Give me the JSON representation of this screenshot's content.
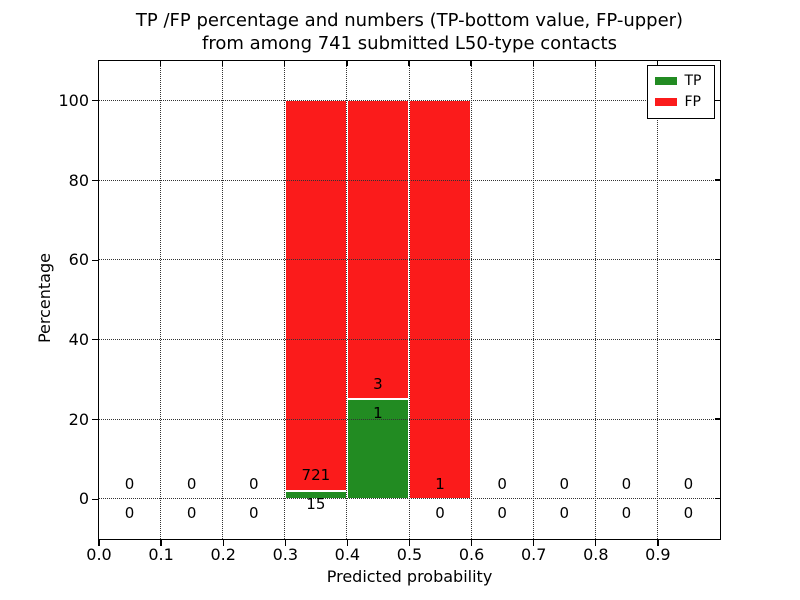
{
  "chart_data": {
    "type": "bar",
    "stacked": true,
    "title_line1": "TP /FP percentage and numbers (TP-bottom value, FP-upper)",
    "title_line2": "from among 741 submitted L50-type contacts",
    "xlabel": "Predicted probability",
    "ylabel": "Percentage",
    "total_submitted_contacts": 741,
    "xlim": [
      0.0,
      1.0
    ],
    "ylim": [
      -10,
      110
    ],
    "grid": "dotted",
    "xtick_values": [
      0.0,
      0.1,
      0.2,
      0.3,
      0.4,
      0.5,
      0.6,
      0.7,
      0.8,
      0.9
    ],
    "xtick_labels": [
      "0.0",
      "0.1",
      "0.2",
      "0.3",
      "0.4",
      "0.5",
      "0.6",
      "0.7",
      "0.8",
      "0.9"
    ],
    "ytick_values": [
      0,
      20,
      40,
      60,
      80,
      100
    ],
    "ytick_labels": [
      "0",
      "20",
      "40",
      "60",
      "80",
      "100"
    ],
    "colors": {
      "tp": "#228b22",
      "fp": "#fb1b1b",
      "bar_edge": "#ffffff",
      "grid": "#333333"
    },
    "legend_position": "upper-right",
    "legend": [
      {
        "label": "TP",
        "color": "#228b22"
      },
      {
        "label": "FP",
        "color": "#fb1b1b"
      }
    ],
    "bins": [
      {
        "range": [
          0.0,
          0.1
        ],
        "tp": 0,
        "fp": 0
      },
      {
        "range": [
          0.1,
          0.2
        ],
        "tp": 0,
        "fp": 0
      },
      {
        "range": [
          0.2,
          0.3
        ],
        "tp": 0,
        "fp": 0
      },
      {
        "range": [
          0.3,
          0.4
        ],
        "tp": 15,
        "fp": 721
      },
      {
        "range": [
          0.4,
          0.5
        ],
        "tp": 1,
        "fp": 3
      },
      {
        "range": [
          0.5,
          0.6
        ],
        "tp": 0,
        "fp": 1
      },
      {
        "range": [
          0.6,
          0.7
        ],
        "tp": 0,
        "fp": 0
      },
      {
        "range": [
          0.7,
          0.8
        ],
        "tp": 0,
        "fp": 0
      },
      {
        "range": [
          0.8,
          0.9
        ],
        "tp": 0,
        "fp": 0
      },
      {
        "range": [
          0.9,
          1.0
        ],
        "tp": 0,
        "fp": 0
      }
    ]
  }
}
